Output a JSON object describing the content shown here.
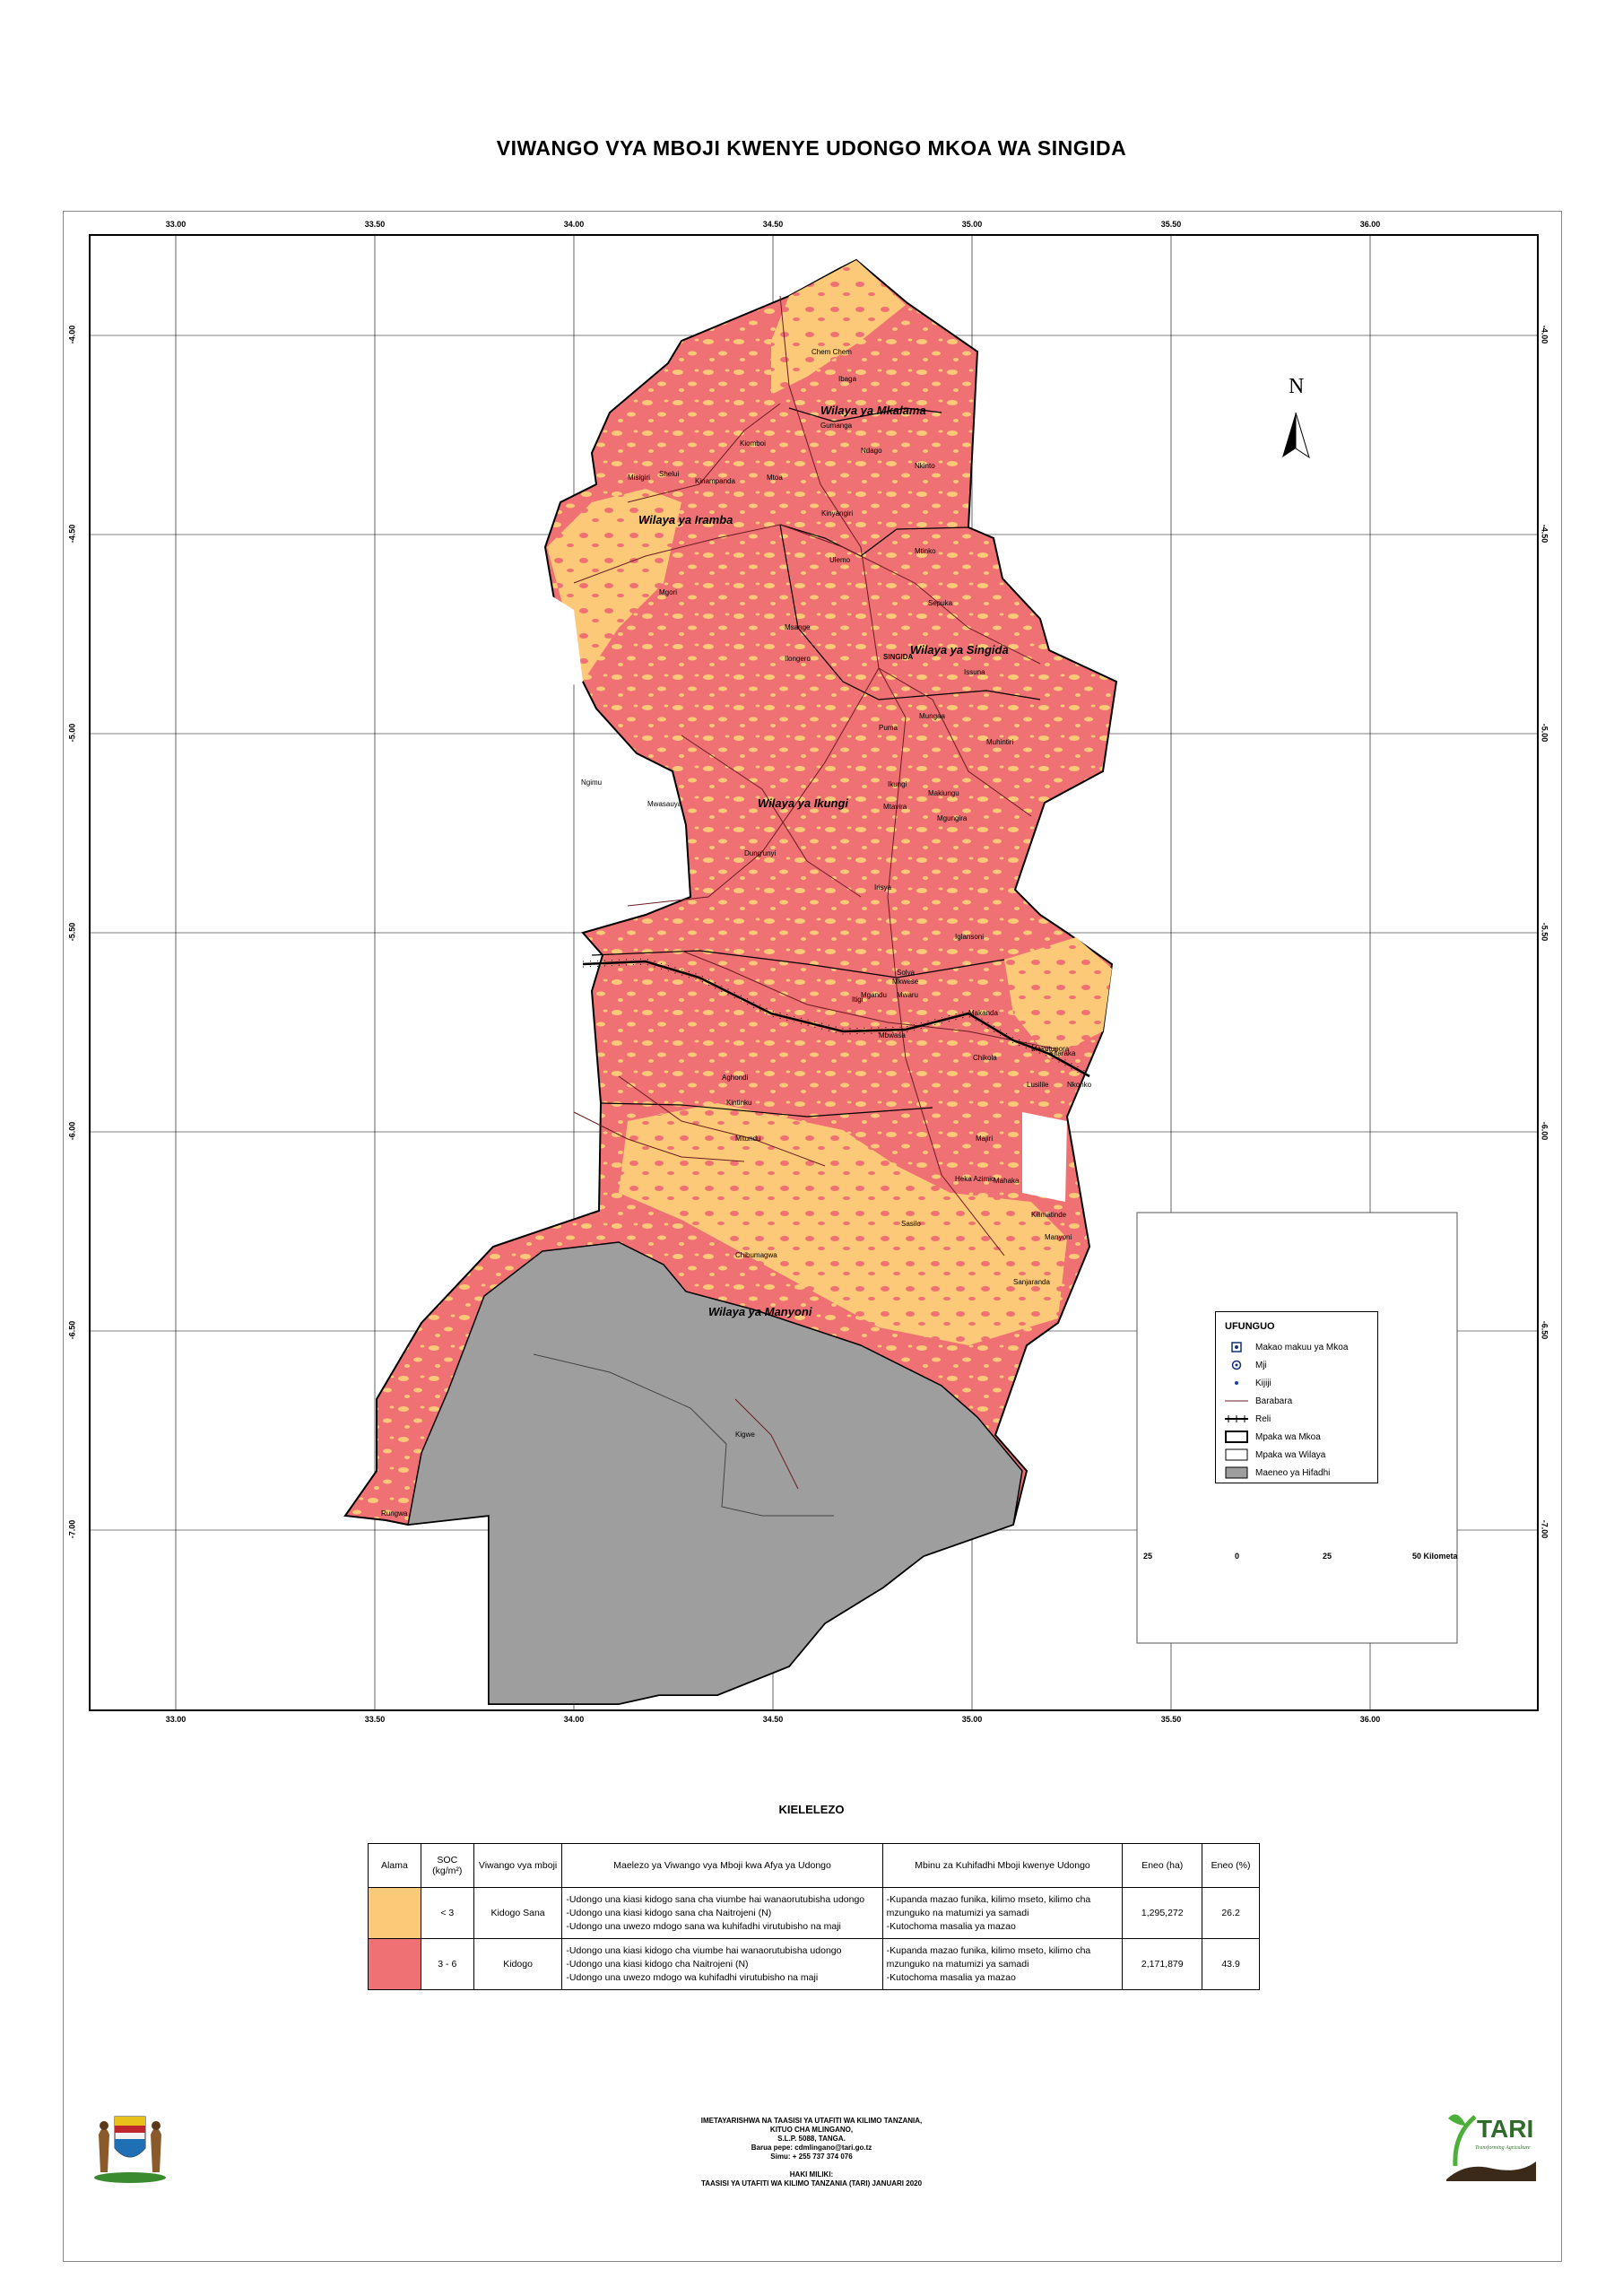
{
  "title": "VIWANGO VYA MBOJI KWENYE UDONGO MKOA WA SINGIDA",
  "colors": {
    "kidogo_sana": "#fcc978",
    "kidogo": "#f07173",
    "hifadhi": "#9e9e9e",
    "frame": "#000000"
  },
  "axis": {
    "x_ticks": [
      "33.00",
      "33.50",
      "34.00",
      "34.50",
      "35.00",
      "35.50",
      "36.00"
    ],
    "y_ticks": [
      "-4.00",
      "-4.50",
      "-5.00",
      "-5.50",
      "-6.00",
      "-6.50",
      "-7.00"
    ]
  },
  "north_label": "N",
  "districts": [
    {
      "name": "Wilaya ya Mkalama"
    },
    {
      "name": "Wilaya ya Iramba"
    },
    {
      "name": "Wilaya ya Singida"
    },
    {
      "name": "Wilaya ya Ikungi"
    },
    {
      "name": "Wilaya ya Manyoni"
    }
  ],
  "places": [
    "Chem Chem",
    "Ibaga",
    "Gumanga",
    "Ndago",
    "Nkinto",
    "Kiomboi",
    "Kinampanda",
    "Shelui",
    "Mtoa",
    "Misigiri",
    "Kinyangiri",
    "Ulemo",
    "Mgori",
    "Msange",
    "Ilongero",
    "Mtinko",
    "Mwasauya",
    "Ikungi",
    "Sepuka",
    "Mungaa",
    "Puma",
    "Issuna",
    "Makiungu",
    "Mgungira",
    "Muhintiri",
    "Mtavira",
    "Ngimu",
    "Dung'unyi",
    "Iglansoni",
    "Irisya",
    "Mwaru",
    "Sasilo",
    "Chikola",
    "Itigi",
    "Aghondi",
    "Rungwa",
    "Heka Azimio",
    "Kintinku",
    "Solya",
    "Mkwese",
    "Makanda",
    "Mbwasa",
    "Mgandu",
    "Majiri",
    "Mahaka",
    "Kilimatinde",
    "Sanjaranda",
    "Lusilile",
    "Kitaraka",
    "Mitundu",
    "Nkonko",
    "Makutupora",
    "Chibumagwa",
    "Kigwe",
    "SINGIDA",
    "Manyoni"
  ],
  "legend": {
    "heading": "UFUNGUO",
    "items": [
      {
        "label": "Makao makuu ya Mkoa",
        "icon": "square-dot-icon"
      },
      {
        "label": "Mji",
        "icon": "circle-dot-icon"
      },
      {
        "label": "Kijiji",
        "icon": "dot-icon"
      },
      {
        "label": "Barabara",
        "icon": "road-line-icon"
      },
      {
        "label": "Reli",
        "icon": "railway-icon"
      },
      {
        "label": "Mpaka wa Mkoa",
        "icon": "region-boundary-icon"
      },
      {
        "label": "Mpaka wa Wilaya",
        "icon": "district-boundary-icon"
      },
      {
        "label": "Maeneo ya Hifadhi",
        "icon": "reserve-area-icon"
      }
    ]
  },
  "scale": {
    "labels": [
      "25",
      "0",
      "25",
      "50 Kilometa"
    ]
  },
  "table": {
    "caption": "KIELELEZO",
    "headers": [
      "Alama",
      "SOC (kg/m²)",
      "Viwango vya mboji",
      "Maelezo ya Viwango vya Mboji kwa Afya ya Udongo",
      "Mbinu za Kuhifadhi Mboji kwenye Udongo",
      "Eneo (ha)",
      "Eneo (%)"
    ],
    "rows": [
      {
        "soc": "< 3",
        "level": "Kidogo Sana",
        "desc": [
          "-Udongo una kiasi kidogo sana cha viumbe hai wanaorutubisha udongo",
          "-Udongo una kiasi kidogo sana cha Naitrojeni (N)",
          "-Udongo una uwezo mdogo sana wa kuhifadhi virutubisho na maji"
        ],
        "methods": [
          "-Kupanda mazao funika, kilimo mseto, kilimo cha mzunguko na matumizi ya samadi",
          "-Kutochoma masalia ya mazao"
        ],
        "area_ha": "1,295,272",
        "area_pct": "26.2"
      },
      {
        "soc": "3 - 6",
        "level": "Kidogo",
        "desc": [
          "-Udongo una kiasi kidogo cha viumbe hai wanaorutubisha udongo",
          "-Udongo una kiasi kidogo cha Naitrojeni (N)",
          "-Udongo una uwezo mdogo wa kuhifadhi virutubisho na maji"
        ],
        "methods": [
          "-Kupanda mazao funika, kilimo mseto, kilimo cha mzunguko na matumizi ya samadi",
          "-Kutochoma masalia ya mazao"
        ],
        "area_ha": "2,171,879",
        "area_pct": "43.9"
      }
    ]
  },
  "footer": {
    "lines": [
      "IMETAYARISHWA NA TAASISI YA UTAFITI WA KILIMO TANZANIA,",
      "KITUO CHA MLINGANO,",
      "S.L.P. 5088, TANGA.",
      "Barua pepe: cdmlingano@tari.go.tz",
      "Simu: + 255 737 374 076",
      "",
      "HAKI MILIKI:",
      "TAASISI YA UTAFITI WA KILIMO TANZANIA (TARI) JANUARI 2020"
    ],
    "logo_right_text": "TARI",
    "logo_right_sub": "Transforming Agriculture"
  }
}
